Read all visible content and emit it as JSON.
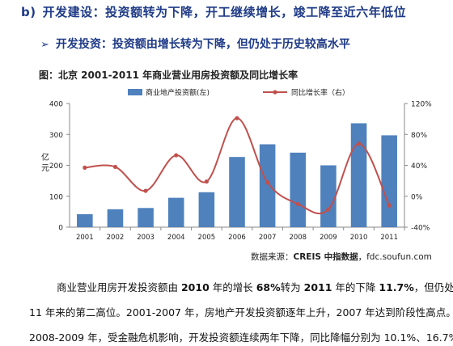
{
  "heading": {
    "marker": "b)",
    "text": "开发建设：投资额转为下降，开工继续增长，竣工降至近六年低位"
  },
  "subheading": {
    "bullet": "➢",
    "text": "开发投资：投资额由增长转为下降，但仍处于历史较高水平"
  },
  "figure_caption": "图：北京 2001-2011 年商业营业用房投资额及同比增长率",
  "source": {
    "label": "数据来源：",
    "brand": "CREIS 中指数据",
    "url": "，fdc.soufun.com"
  },
  "paragraph": {
    "line1_a": "商业营业用房开发投资额由 ",
    "line1_b": "2010",
    "line1_c": " 年的增长 ",
    "line1_d": "68%",
    "line1_e": "转为 ",
    "line1_f": "2011",
    "line1_g": " 年的下降 ",
    "line1_h": "11.7%",
    "line1_i": "，但仍处于近",
    "line2": "11 年来的第二高位。2001-2007 年，房地产开发投资额逐年上升，2007 年达到阶段性高点。",
    "line3": "2008-2009 年，受金融危机影响，开发投资额连续两年下降，同比降幅分别为 10.1%、16.7%。"
  },
  "colors": {
    "heading": "#1f3b87",
    "bar": "#4f81bd",
    "line": "#c0504d"
  },
  "chart_data": {
    "type": "bar",
    "categories": [
      "2001",
      "2002",
      "2003",
      "2004",
      "2005",
      "2006",
      "2007",
      "2008",
      "2009",
      "2010",
      "2011"
    ],
    "series": [
      {
        "name": "商业地产投资额(左)",
        "type": "bar",
        "axis": "left",
        "values": [
          42,
          58,
          62,
          95,
          113,
          227,
          268,
          241,
          200,
          336,
          297
        ]
      },
      {
        "name": "同比增长率（右）",
        "type": "line",
        "axis": "right",
        "values": [
          37,
          38,
          7,
          53,
          19,
          101,
          18,
          -10,
          -17,
          68,
          -12
        ]
      }
    ],
    "ylabel": "亿元",
    "ylim": [
      0,
      400
    ],
    "yticks": [
      0,
      100,
      200,
      300,
      400
    ],
    "y2lim": [
      -40,
      120
    ],
    "y2ticks": [
      "-40%",
      "0%",
      "40%",
      "80%",
      "120%"
    ],
    "legend_position": "top",
    "grid": false
  }
}
